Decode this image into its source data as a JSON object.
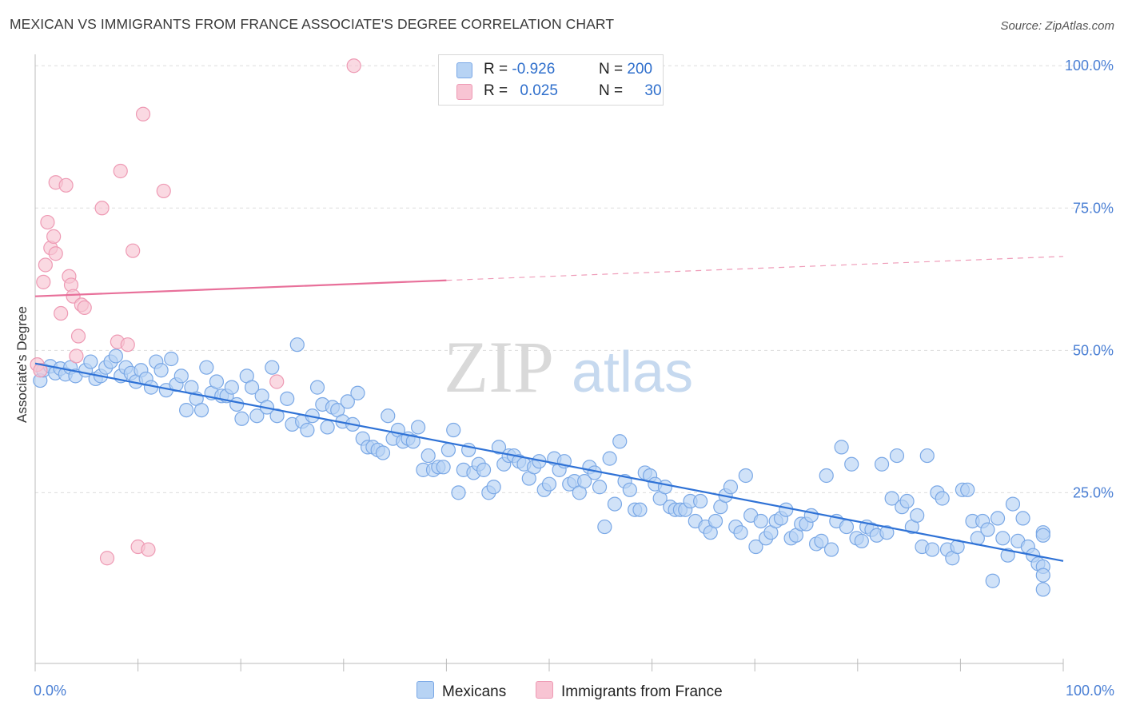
{
  "title": "MEXICAN VS IMMIGRANTS FROM FRANCE ASSOCIATE'S DEGREE CORRELATION CHART",
  "source": "Source: ZipAtlas.com",
  "watermark": {
    "zip": "ZIP",
    "atlas": "atlas"
  },
  "legend": {
    "rows": [
      {
        "r_label": "R =",
        "r_value": "-0.926",
        "n_label": "N =",
        "n_value": "200"
      },
      {
        "r_label": "R =",
        "r_value": "0.025",
        "n_label": "N =",
        "n_value": "30"
      }
    ]
  },
  "bottom_legend": {
    "mexicans": "Mexicans",
    "france": "Immigrants from France"
  },
  "colors": {
    "blue_fill": "#b7d3f4",
    "blue_stroke": "#7aa8e6",
    "blue_line": "#2f72d6",
    "pink_fill": "#f8c4d3",
    "pink_stroke": "#ee9ab4",
    "pink_line": "#e8709a",
    "tick_label": "#4a7fd4",
    "grid": "#dddddd"
  },
  "chart_data": {
    "type": "scatter",
    "title": "MEXICAN VS IMMIGRANTS FROM FRANCE ASSOCIATE'S DEGREE CORRELATION CHART",
    "xlabel": "",
    "ylabel": "Associate's Degree",
    "xlim": [
      0,
      100
    ],
    "ylim": [
      -5,
      102
    ],
    "x_tick_labels": [
      {
        "value": 0,
        "label": "0.0%"
      },
      {
        "value": 100,
        "label": "100.0%"
      }
    ],
    "y_tick_labels": [
      {
        "value": 25,
        "label": "25.0%"
      },
      {
        "value": 50,
        "label": "50.0%"
      },
      {
        "value": 75,
        "label": "75.0%"
      },
      {
        "value": 100,
        "label": "100.0%"
      }
    ],
    "series": [
      {
        "name": "Mexicans",
        "R": -0.926,
        "N": 200,
        "trend": {
          "x0": 0,
          "y0": 47.7,
          "x1": 100,
          "y1": 13.0,
          "solid_to": 100
        },
        "points": [
          [
            0.5,
            44.7
          ],
          [
            0.8,
            46.5
          ],
          [
            1.5,
            47.2
          ],
          [
            2,
            46
          ],
          [
            2.5,
            46.8
          ],
          [
            3,
            45.8
          ],
          [
            3.5,
            47
          ],
          [
            4,
            45.5
          ],
          [
            5,
            46.5
          ],
          [
            5.5,
            48
          ],
          [
            6,
            45
          ],
          [
            6.5,
            45.5
          ],
          [
            7,
            47
          ],
          [
            7.5,
            48
          ],
          [
            8,
            49
          ],
          [
            8.5,
            45.5
          ],
          [
            9,
            47
          ],
          [
            9.5,
            46
          ],
          [
            10,
            44.5
          ],
          [
            10.5,
            46.5
          ],
          [
            11,
            45
          ],
          [
            11.5,
            43.5
          ],
          [
            12,
            48
          ],
          [
            12.5,
            46.5
          ],
          [
            13,
            43
          ],
          [
            13.5,
            48.5
          ],
          [
            14,
            44
          ],
          [
            14.5,
            45.5
          ],
          [
            15,
            39.5
          ],
          [
            15.5,
            43.5
          ],
          [
            16,
            41.5
          ],
          [
            16.5,
            39.5
          ],
          [
            17,
            47
          ],
          [
            17.5,
            42.5
          ],
          [
            18,
            44.5
          ],
          [
            18.5,
            42
          ],
          [
            19,
            42
          ],
          [
            19.5,
            43.5
          ],
          [
            20,
            40.5
          ],
          [
            20.5,
            38
          ],
          [
            21,
            45.5
          ],
          [
            21.5,
            43.5
          ],
          [
            22,
            38.5
          ],
          [
            22.5,
            42
          ],
          [
            23,
            40
          ],
          [
            23.5,
            47
          ],
          [
            24,
            38.5
          ],
          [
            25,
            41.5
          ],
          [
            25.5,
            37
          ],
          [
            26,
            51
          ],
          [
            26.5,
            37.5
          ],
          [
            27,
            36
          ],
          [
            27.5,
            38.5
          ],
          [
            28,
            43.5
          ],
          [
            28.5,
            40.5
          ],
          [
            29,
            36.5
          ],
          [
            29.5,
            40
          ],
          [
            30,
            39.5
          ],
          [
            30.5,
            37.5
          ],
          [
            31,
            41
          ],
          [
            31.5,
            37
          ],
          [
            32,
            42.5
          ],
          [
            32.5,
            34.5
          ],
          [
            33,
            33
          ],
          [
            33.5,
            33
          ],
          [
            34,
            32.5
          ],
          [
            34.5,
            32
          ],
          [
            35,
            38.5
          ],
          [
            35.5,
            34.5
          ],
          [
            36,
            36
          ],
          [
            36.5,
            34
          ],
          [
            37,
            34.5
          ],
          [
            37.5,
            34
          ],
          [
            38,
            36.5
          ],
          [
            38.5,
            29
          ],
          [
            39,
            31.5
          ],
          [
            39.5,
            29
          ],
          [
            40,
            29.5
          ],
          [
            40.5,
            29.5
          ],
          [
            41,
            32.5
          ],
          [
            41.5,
            36
          ],
          [
            42,
            25
          ],
          [
            42.5,
            29
          ],
          [
            43,
            32.5
          ],
          [
            43.5,
            28.5
          ],
          [
            44,
            30
          ],
          [
            44.5,
            29
          ],
          [
            45,
            25
          ],
          [
            45.5,
            26
          ],
          [
            46,
            33
          ],
          [
            46.5,
            30
          ],
          [
            47,
            31.5
          ],
          [
            47.5,
            31.5
          ],
          [
            48,
            30.5
          ],
          [
            48.5,
            30
          ],
          [
            49,
            27.5
          ],
          [
            49.5,
            29.5
          ],
          [
            50,
            30.5
          ],
          [
            50.5,
            25.5
          ],
          [
            51,
            26.5
          ],
          [
            51.5,
            31
          ],
          [
            52,
            29
          ],
          [
            52.5,
            30.5
          ],
          [
            53,
            26.5
          ],
          [
            53.5,
            27
          ],
          [
            54,
            25
          ],
          [
            54.5,
            27
          ],
          [
            55,
            29.5
          ],
          [
            55.5,
            28.5
          ],
          [
            56,
            26
          ],
          [
            56.5,
            19
          ],
          [
            57,
            31
          ],
          [
            57.5,
            23
          ],
          [
            58,
            34
          ],
          [
            58.5,
            27
          ],
          [
            59,
            25.5
          ],
          [
            59.5,
            22
          ],
          [
            60,
            22
          ],
          [
            60.5,
            28.5
          ],
          [
            61,
            28
          ],
          [
            61.5,
            26.5
          ],
          [
            62,
            24
          ],
          [
            62.5,
            26
          ],
          [
            63,
            22.5
          ],
          [
            63.5,
            22
          ],
          [
            64,
            22
          ],
          [
            64.5,
            22
          ],
          [
            65,
            23.5
          ],
          [
            65.5,
            20
          ],
          [
            66,
            23.5
          ],
          [
            66.5,
            19
          ],
          [
            67,
            18
          ],
          [
            67.5,
            20
          ],
          [
            68,
            22.5
          ],
          [
            68.5,
            24.5
          ],
          [
            69,
            26
          ],
          [
            69.5,
            19
          ],
          [
            70,
            18
          ],
          [
            70.5,
            28
          ],
          [
            71,
            21
          ],
          [
            71.5,
            15.5
          ],
          [
            72,
            20
          ],
          [
            72.5,
            17
          ],
          [
            73,
            18
          ],
          [
            73.5,
            20
          ],
          [
            74,
            20.5
          ],
          [
            74.5,
            22
          ],
          [
            75,
            17
          ],
          [
            75.5,
            17.5
          ],
          [
            76,
            19.5
          ],
          [
            76.5,
            19.5
          ],
          [
            77,
            21
          ],
          [
            77.5,
            16
          ],
          [
            78,
            16.5
          ],
          [
            78.5,
            28
          ],
          [
            79,
            15
          ],
          [
            79.5,
            20
          ],
          [
            80,
            33
          ],
          [
            80.5,
            19
          ],
          [
            81,
            30
          ],
          [
            81.5,
            17
          ],
          [
            82,
            16.5
          ],
          [
            82.5,
            19
          ],
          [
            83,
            18.5
          ],
          [
            83.5,
            17.5
          ],
          [
            84,
            30
          ],
          [
            84.5,
            18
          ],
          [
            85,
            24
          ],
          [
            85.5,
            31.5
          ],
          [
            86,
            22.5
          ],
          [
            86.5,
            23.5
          ],
          [
            87,
            19
          ],
          [
            87.5,
            21
          ],
          [
            88,
            15.5
          ],
          [
            88.5,
            31.5
          ],
          [
            89,
            15
          ],
          [
            89.5,
            25
          ],
          [
            90,
            24
          ],
          [
            90.5,
            15
          ],
          [
            91,
            13.5
          ],
          [
            91.5,
            15.5
          ],
          [
            92,
            25.5
          ],
          [
            92.5,
            25.5
          ],
          [
            93,
            20
          ],
          [
            93.5,
            17
          ],
          [
            94,
            20
          ],
          [
            94.5,
            18.5
          ],
          [
            95,
            9.5
          ],
          [
            95.5,
            20.5
          ],
          [
            96,
            17
          ],
          [
            96.5,
            14
          ],
          [
            97,
            23
          ],
          [
            97.5,
            16.5
          ],
          [
            98,
            20.5
          ],
          [
            98.5,
            15.5
          ],
          [
            99,
            14
          ],
          [
            99.5,
            12.5
          ],
          [
            100,
            12
          ],
          [
            100.5,
            10.5
          ],
          [
            101,
            8
          ],
          [
            101.5,
            18
          ],
          [
            102,
            17.5
          ]
        ]
      },
      {
        "name": "Immigrants from France",
        "R": 0.025,
        "N": 30,
        "trend": {
          "x0": 0,
          "y0": 59.5,
          "x1": 100,
          "y1": 66.5,
          "solid_to": 40
        },
        "points": [
          [
            0.2,
            47.5
          ],
          [
            0.5,
            46.5
          ],
          [
            0.8,
            62
          ],
          [
            1,
            65
          ],
          [
            1.2,
            72.5
          ],
          [
            1.5,
            68
          ],
          [
            1.8,
            70
          ],
          [
            2,
            67
          ],
          [
            2,
            79.5
          ],
          [
            2.5,
            56.5
          ],
          [
            3,
            79
          ],
          [
            3.3,
            63
          ],
          [
            3.5,
            61.5
          ],
          [
            3.7,
            59.5
          ],
          [
            4,
            49
          ],
          [
            4.2,
            52.5
          ],
          [
            4.5,
            58
          ],
          [
            4.8,
            57.5
          ],
          [
            6.5,
            75
          ],
          [
            7,
            13.5
          ],
          [
            8,
            51.5
          ],
          [
            8.3,
            81.5
          ],
          [
            9,
            51
          ],
          [
            9.5,
            67.5
          ],
          [
            10,
            15.5
          ],
          [
            10.5,
            91.5
          ],
          [
            11,
            15
          ],
          [
            12.5,
            78
          ],
          [
            23.5,
            44.5
          ],
          [
            31,
            100
          ]
        ]
      }
    ]
  }
}
